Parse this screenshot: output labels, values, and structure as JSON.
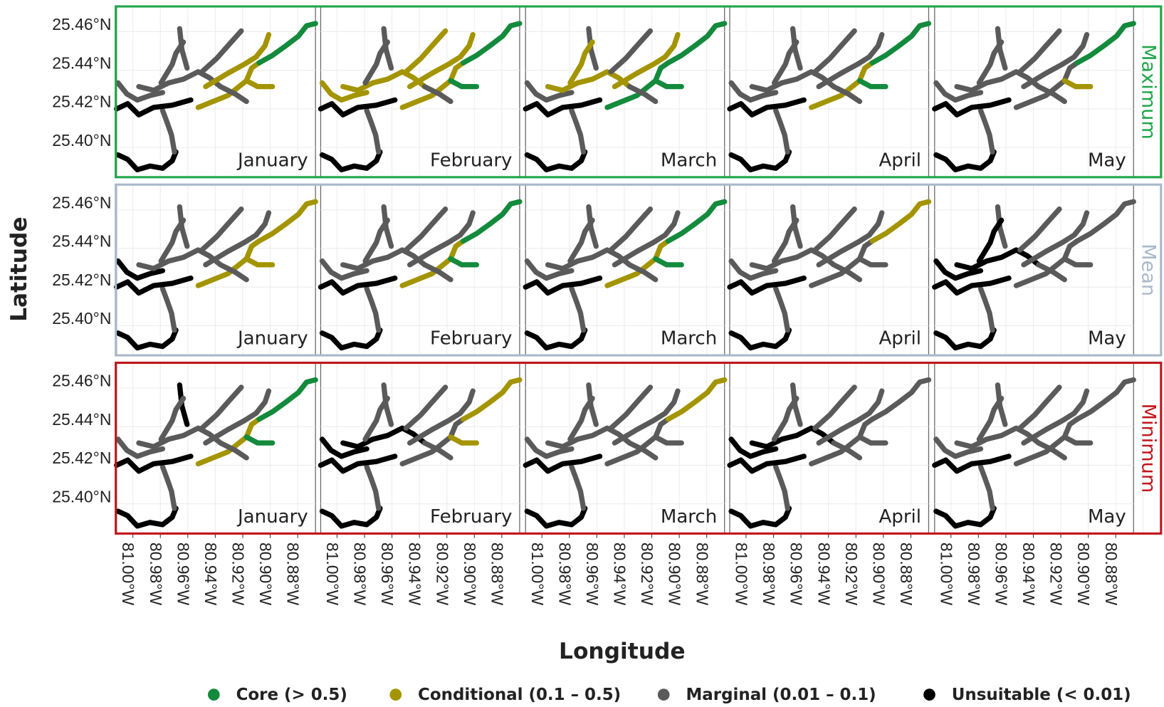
{
  "axes": {
    "x_label": "Longitude",
    "y_label": "Latitude",
    "lat_ticks": [
      "25.46°N",
      "25.44°N",
      "25.42°N",
      "25.40°N"
    ],
    "lon_ticks": [
      "81.00°W",
      "80.98°W",
      "80.96°W",
      "80.94°W",
      "80.92°W",
      "80.90°W",
      "80.88°W"
    ]
  },
  "rows": [
    {
      "label": "Maximum",
      "color": "#1fa64a"
    },
    {
      "label": "Mean",
      "color": "#a9b9c9"
    },
    {
      "label": "Minimum",
      "color": "#c0161c"
    }
  ],
  "months": [
    "January",
    "February",
    "March",
    "April",
    "May"
  ],
  "legend": [
    {
      "label": "Core (> 0.5)",
      "color": "#138a3c"
    },
    {
      "label": "Conditional (0.1 – 0.5)",
      "color": "#a39400"
    },
    {
      "label": "Marginal (0.01 – 0.1)",
      "color": "#5a5a5a"
    },
    {
      "label": "Unsuitable (< 0.01)",
      "color": "#000000"
    }
  ]
}
